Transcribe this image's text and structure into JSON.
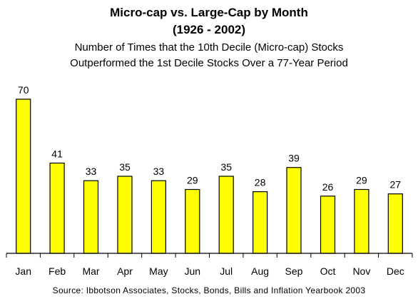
{
  "chart_data": {
    "type": "bar",
    "title": "Micro-cap vs. Large-Cap by Month",
    "title2": "(1926 - 2002)",
    "subtitle1": "Number of Times that the 10th Decile (Micro-cap) Stocks",
    "subtitle2": "Outperformed the 1st Decile Stocks Over a 77-Year Period",
    "categories": [
      "Jan",
      "Feb",
      "Mar",
      "Apr",
      "May",
      "Jun",
      "Jul",
      "Aug",
      "Sep",
      "Oct",
      "Nov",
      "Dec"
    ],
    "values": [
      70,
      41,
      33,
      35,
      33,
      29,
      35,
      28,
      39,
      26,
      29,
      27
    ],
    "ylim": [
      0,
      70
    ],
    "bar_color": "#ffff00",
    "bar_outline": "#000000",
    "grid": false,
    "source": "Source: Ibbotson Associates, Stocks, Bonds, Bills and Inflation Yearbook 2003"
  }
}
